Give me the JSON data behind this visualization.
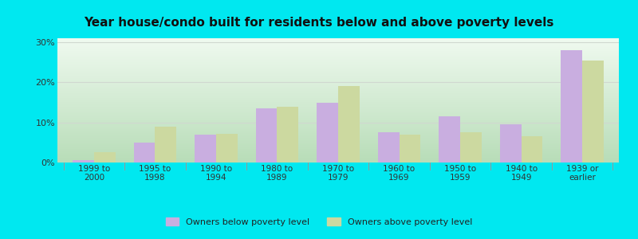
{
  "title": "Year house/condo built for residents below and above poverty levels",
  "categories": [
    "1999 to\n2000",
    "1995 to\n1998",
    "1990 to\n1994",
    "1980 to\n1989",
    "1970 to\n1979",
    "1960 to\n1969",
    "1950 to\n1959",
    "1940 to\n1949",
    "1939 or\nearlier"
  ],
  "below_poverty": [
    0.5,
    5.0,
    7.0,
    13.5,
    15.0,
    7.5,
    11.5,
    9.5,
    28.0
  ],
  "above_poverty": [
    2.5,
    9.0,
    7.2,
    14.0,
    19.0,
    7.0,
    7.5,
    6.5,
    25.5
  ],
  "below_color": "#c9aee0",
  "above_color": "#ccd9a0",
  "ylim": [
    0,
    31
  ],
  "yticks": [
    0,
    10,
    20,
    30
  ],
  "ytick_labels": [
    "0%",
    "10%",
    "20%",
    "30%"
  ],
  "legend_below_label": "Owners below poverty level",
  "legend_above_label": "Owners above poverty level",
  "outer_bg_color": "#00e8f0",
  "grid_color": "#d0d8d0",
  "title_fontsize": 11,
  "bar_width": 0.35,
  "plot_bg_color_bottom": "#b8ddb8",
  "plot_bg_color_top": "#f0faf0"
}
